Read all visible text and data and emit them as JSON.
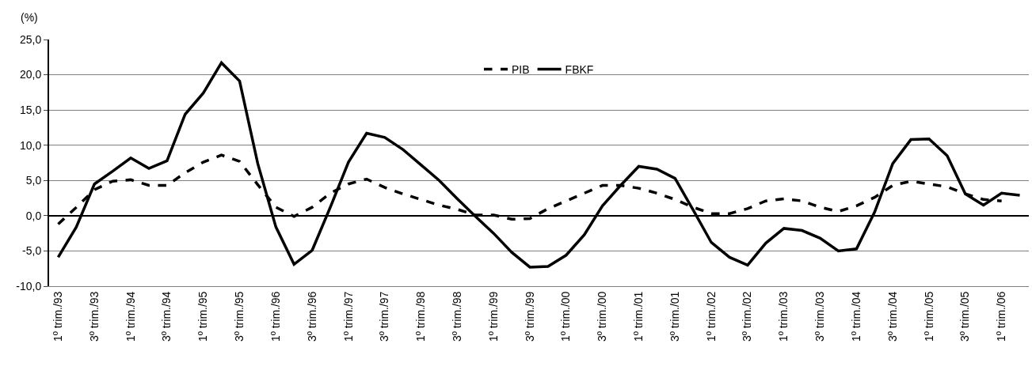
{
  "chart_data": {
    "type": "line",
    "ylabel": "(%)",
    "categories": [
      "1º trim./93",
      null,
      "3º trim./93",
      null,
      "1º trim./94",
      null,
      "3º trim./94",
      null,
      "1º trim./95",
      null,
      "3º trim./95",
      null,
      "1º trim./96",
      null,
      "3º trim./96",
      null,
      "1º trim./97",
      null,
      "3º trim./97",
      null,
      "1º trim./98",
      null,
      "3º trim./98",
      null,
      "1º trim./99",
      null,
      "3º trim./99",
      null,
      "1º trim./00",
      null,
      "3º trim./00",
      null,
      "1º trim./01",
      null,
      "3º trim./01",
      null,
      "1º trim./02",
      null,
      "3º trim./02",
      null,
      "1º trim./03",
      null,
      "3º trim./03",
      null,
      "1º trim./04",
      null,
      "3º trim./04",
      null,
      "1º trim./05",
      null,
      "3º trim./05",
      null,
      "1º trim./06",
      null
    ],
    "series": [
      {
        "name": "PIB",
        "color": "#000000",
        "line_style": "dashed",
        "values": [
          -1.2,
          1.2,
          3.7,
          4.9,
          5.1,
          4.3,
          4.3,
          6.1,
          7.6,
          8.6,
          7.7,
          4.4,
          1.2,
          -0.1,
          1.2,
          3.2,
          4.5,
          5.2,
          4.0,
          3.1,
          2.3,
          1.5,
          0.9,
          0.1,
          0.1,
          -0.5,
          -0.4,
          1.0,
          2.1,
          3.2,
          4.3,
          4.3,
          3.9,
          3.2,
          2.3,
          1.2,
          0.3,
          0.3,
          1.0,
          2.1,
          2.4,
          2.1,
          1.2,
          0.6,
          1.4,
          2.6,
          4.3,
          4.9,
          4.5,
          4.1,
          3.1,
          2.3,
          2.1,
          null
        ]
      },
      {
        "name": "FBKF",
        "color": "#000000",
        "line_style": "solid",
        "values": [
          -5.9,
          -1.6,
          4.5,
          6.3,
          8.2,
          6.7,
          7.8,
          14.4,
          17.4,
          21.7,
          19.1,
          7.4,
          -1.6,
          -6.9,
          -4.9,
          1.2,
          7.6,
          11.7,
          11.1,
          9.4,
          7.2,
          5.0,
          2.4,
          -0.1,
          -2.5,
          -5.2,
          -7.3,
          -7.2,
          -5.6,
          -2.7,
          1.4,
          4.3,
          7.0,
          6.6,
          5.3,
          0.8,
          -3.8,
          -5.9,
          -7.0,
          -3.9,
          -1.8,
          -2.1,
          -3.2,
          -5.0,
          -4.7,
          0.5,
          7.4,
          10.8,
          10.9,
          8.5,
          3.1,
          1.5,
          3.2,
          2.9
        ]
      }
    ],
    "ylim": [
      -10,
      25
    ],
    "yticks": [
      {
        "value": -10,
        "label": "-10,0"
      },
      {
        "value": -5,
        "label": "-5,0"
      },
      {
        "value": 0,
        "label": "0,0"
      },
      {
        "value": 5,
        "label": "5,0"
      },
      {
        "value": 10,
        "label": "10,0"
      },
      {
        "value": 15,
        "label": "15,0"
      },
      {
        "value": 20,
        "label": "20,0"
      },
      {
        "value": 25,
        "label": "25,0"
      }
    ],
    "grid": "y",
    "legend": "top",
    "marker": "none"
  }
}
